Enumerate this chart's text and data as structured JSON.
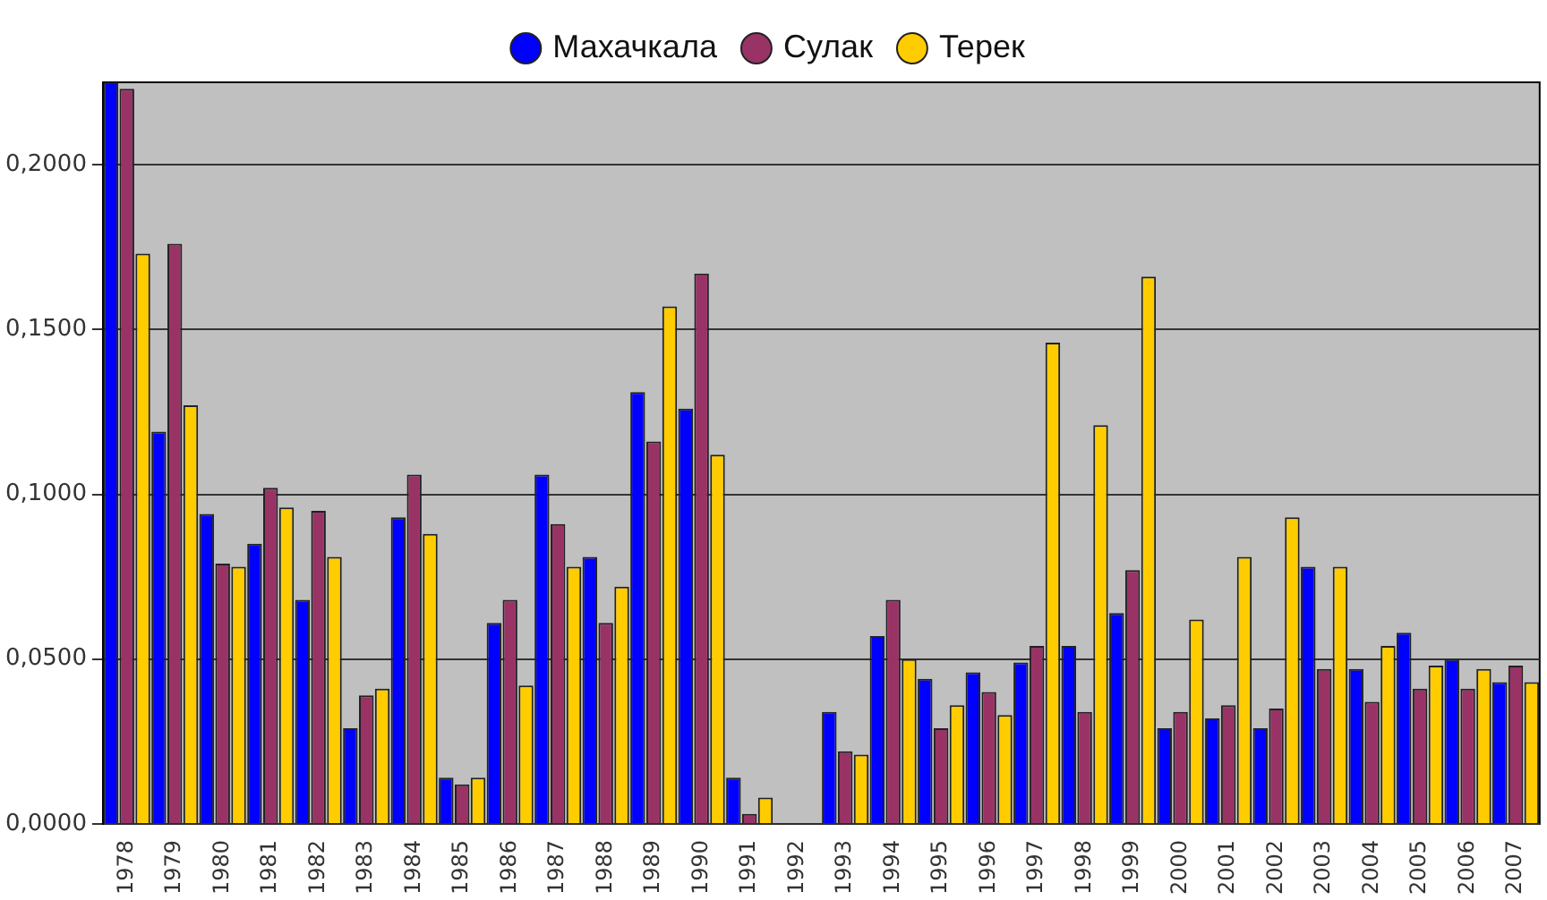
{
  "chart_data": {
    "type": "bar",
    "categories": [
      "1978",
      "1979",
      "1980",
      "1981",
      "1982",
      "1983",
      "1984",
      "1985",
      "1986",
      "1987",
      "1988",
      "1989",
      "1990",
      "1991",
      "1992",
      "1993",
      "1994",
      "1995",
      "1996",
      "1997",
      "1998",
      "1999",
      "2000",
      "2001",
      "2002",
      "2003",
      "2004",
      "2005",
      "2006",
      "2007"
    ],
    "series": [
      {
        "name": "Махачкала",
        "color": "#0000ff",
        "values": [
          0.225,
          0.119,
          0.094,
          0.085,
          0.068,
          0.029,
          0.093,
          0.014,
          0.061,
          0.106,
          0.081,
          0.131,
          0.126,
          0.014,
          null,
          0.034,
          0.057,
          0.044,
          0.046,
          0.049,
          0.054,
          0.064,
          0.029,
          0.032,
          0.029,
          0.078,
          0.047,
          0.058,
          0.05,
          0.043
        ]
      },
      {
        "name": "Сулак",
        "color": "#993366",
        "values": [
          0.223,
          0.176,
          0.079,
          0.102,
          0.095,
          0.039,
          0.106,
          0.012,
          0.068,
          0.091,
          0.061,
          0.116,
          0.167,
          0.003,
          null,
          0.022,
          0.068,
          0.029,
          0.04,
          0.054,
          0.034,
          0.077,
          0.034,
          0.036,
          0.035,
          0.047,
          0.037,
          0.041,
          0.041,
          0.048
        ]
      },
      {
        "name": "Терек",
        "color": "#ffcc00",
        "values": [
          0.173,
          0.127,
          0.078,
          0.096,
          0.081,
          0.041,
          0.088,
          0.014,
          0.042,
          0.078,
          0.072,
          0.157,
          0.112,
          0.008,
          null,
          0.021,
          0.05,
          0.036,
          0.033,
          0.146,
          0.121,
          0.166,
          0.062,
          0.081,
          0.093,
          0.078,
          0.054,
          0.048,
          0.047,
          0.043
        ]
      }
    ],
    "ylim": [
      0,
      0.225
    ],
    "yticks": [
      {
        "value": 0,
        "label": "0,0000"
      },
      {
        "value": 0.05,
        "label": "0,0500"
      },
      {
        "value": 0.1,
        "label": "0,1000"
      },
      {
        "value": 0.15,
        "label": "0,1500"
      },
      {
        "value": 0.2,
        "label": "0,2000"
      }
    ],
    "grid": "y",
    "legend": "top"
  }
}
